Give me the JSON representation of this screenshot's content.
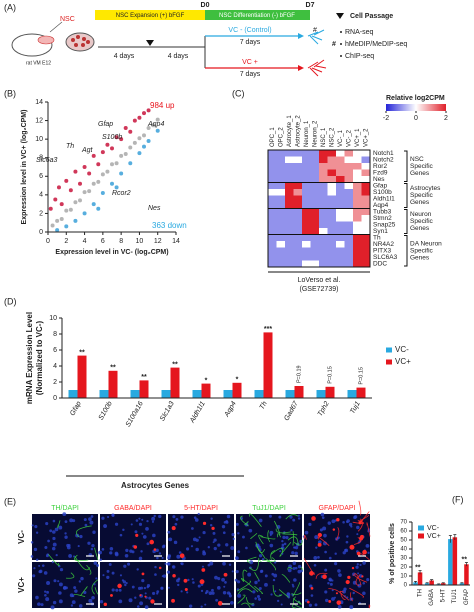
{
  "diagram": {
    "label": "(A)",
    "source_label": "NSC",
    "source": "rat VM E12",
    "expansion": "NSC Expansion (+) bFGF",
    "differentiation": "NSC Differentiation (-) bFGF",
    "d0": "D0",
    "d7": "D7",
    "steps": [
      "4 days",
      "4 days"
    ],
    "control": "VC - (Control)",
    "control_days": "7 days",
    "treated": "VC +",
    "treated_days": "7 days",
    "passage_mark": "#",
    "legend": {
      "passage": "Cell Passage",
      "assays_mark": "#",
      "assays": [
        "RNA-seq",
        "hMeDIP/MeDIP-seq",
        "ChIP-seq"
      ]
    }
  },
  "chart_data": [
    {
      "type": "scatter",
      "label": "(B)",
      "xlabel": "Expression level in VC- (log₂CPM)",
      "ylabel": "Expression level in VC+ (log₂CPM)",
      "xlim": [
        0,
        14
      ],
      "ylim": [
        0,
        14
      ],
      "xticks": [
        0,
        2,
        4,
        6,
        8,
        10,
        12,
        14
      ],
      "yticks": [
        0,
        2,
        4,
        6,
        8,
        10,
        12,
        14
      ],
      "series": [
        {
          "color": "#a8a8a8",
          "x": [
            0.5,
            1,
            1.5,
            2,
            2.5,
            3,
            3.5,
            4,
            4.5,
            5,
            5.5,
            6,
            6.5,
            7,
            7.5,
            8,
            8.5,
            9,
            9.5,
            10,
            10.5,
            11,
            11.5,
            12
          ],
          "y": [
            0.7,
            1.2,
            1.4,
            2.3,
            2.4,
            3.2,
            3.4,
            4.3,
            4.4,
            5.2,
            5.4,
            6.2,
            6.5,
            7.3,
            7.4,
            8.2,
            8.4,
            9.1,
            9.6,
            10.1,
            10.4,
            11.2,
            11.5,
            12.1
          ]
        },
        {
          "color": "#c8143c",
          "x": [
            0.3,
            0.8,
            1.2,
            1.5,
            2,
            2.5,
            3,
            3.5,
            4,
            4.5,
            5,
            5.5,
            6,
            6.5,
            7,
            7.5,
            8,
            8.5,
            9,
            9.5,
            10,
            10.5,
            11
          ],
          "y": [
            2.5,
            3.5,
            4.8,
            3,
            5.5,
            4.5,
            6.5,
            5.2,
            7,
            6.3,
            8.2,
            7.3,
            8.6,
            9.4,
            9,
            10.2,
            10,
            11.2,
            10.8,
            12,
            12.3,
            12.8,
            13.1
          ]
        },
        {
          "color": "#3aa0d8",
          "x": [
            1,
            2,
            3,
            4,
            5,
            5.5,
            6,
            7,
            7.5,
            8,
            9,
            10,
            10.5,
            11,
            12
          ],
          "y": [
            0.2,
            0.6,
            1.2,
            2,
            3,
            2.5,
            4.2,
            5.2,
            4.8,
            6.3,
            7.4,
            8.5,
            9.2,
            9.8,
            10.9
          ]
        }
      ],
      "annotations": [
        {
          "text": "984 up",
          "color": "#e8141c"
        },
        {
          "text": "Gfap",
          "color": "#222222"
        },
        {
          "text": "Aqp4",
          "color": "#222222"
        },
        {
          "text": "S100b",
          "color": "#222222"
        },
        {
          "text": "Th",
          "color": "#222222"
        },
        {
          "text": "Agt",
          "color": "#222222"
        },
        {
          "text": "Slc6a3",
          "color": "#222222"
        },
        {
          "text": "Rcor2",
          "color": "#222222"
        },
        {
          "text": "Nes",
          "color": "#222222"
        },
        {
          "text": "363 down",
          "color": "#29a9e0"
        }
      ]
    },
    {
      "type": "heatmap",
      "label": "(C)",
      "x": [
        "OPC_1",
        "OPC_2",
        "Astrocyte_1",
        "Astrocyte_2",
        "Neuron_1",
        "Neuron_2",
        "NSC_1",
        "NSC_2",
        "VC-_1",
        "VC-_2",
        "VC+_1",
        "VC+_2"
      ],
      "y": [
        "Notch1",
        "Notch2",
        "Ror2",
        "Fzd9",
        "Nes",
        "Gfap",
        "S100b",
        "Aldh1l1",
        "Aqp4",
        "Tubb3",
        "Stmn2",
        "Snap25",
        "Syn1",
        "Th",
        "NR4A2",
        "PITX3",
        "SLC6A3",
        "DDC"
      ],
      "values": [
        [
          -1,
          -1,
          -1,
          -1,
          -1,
          -1,
          2,
          2,
          0,
          1,
          0,
          0
        ],
        [
          -1,
          -1,
          0,
          0,
          -1,
          -1,
          2,
          1,
          1,
          0,
          0,
          -1
        ],
        [
          -1,
          -1,
          -1,
          -1,
          -1,
          -1,
          1,
          1,
          1,
          1,
          1,
          0
        ],
        [
          -1,
          -1,
          -1,
          -1,
          -1,
          -1,
          1,
          2,
          1,
          1,
          0,
          1
        ],
        [
          -1,
          -1,
          -1,
          -1,
          -1,
          -1,
          1,
          1,
          2,
          1,
          0,
          0
        ],
        [
          -1,
          -1,
          2,
          2,
          -1,
          -1,
          -1,
          0,
          -1,
          0,
          1,
          2
        ],
        [
          0,
          0,
          2,
          1,
          -1,
          -1,
          -1,
          0,
          -1,
          -1,
          1,
          2
        ],
        [
          -1,
          -1,
          2,
          2,
          -1,
          -1,
          -1,
          -1,
          -1,
          -1,
          1,
          1
        ],
        [
          -1,
          -1,
          2,
          2,
          -1,
          -1,
          -1,
          -1,
          -1,
          -1,
          1,
          1
        ],
        [
          -1,
          -1,
          -1,
          -1,
          2,
          2,
          -1,
          -1,
          0,
          0,
          1,
          1
        ],
        [
          -1,
          -1,
          -1,
          -1,
          2,
          2,
          -1,
          -1,
          0,
          0,
          1,
          0
        ],
        [
          -1,
          -1,
          -1,
          -1,
          2,
          2,
          -1,
          -1,
          -1,
          -1,
          0,
          0
        ],
        [
          -1,
          -1,
          -1,
          -1,
          2,
          2,
          0,
          -1,
          -1,
          -1,
          0,
          0
        ],
        [
          -1,
          -1,
          -1,
          -1,
          -1,
          -1,
          -1,
          -1,
          -1,
          -1,
          2,
          2
        ],
        [
          -1,
          0,
          -1,
          -1,
          0,
          -1,
          -1,
          -1,
          0,
          -1,
          2,
          2
        ],
        [
          -1,
          -1,
          -1,
          -1,
          -1,
          -1,
          -1,
          -1,
          -1,
          -1,
          2,
          2
        ],
        [
          -1,
          -1,
          -1,
          -1,
          -1,
          -1,
          -1,
          -1,
          -1,
          -1,
          2,
          2
        ],
        [
          -1,
          -1,
          -1,
          -1,
          0,
          0,
          -1,
          -1,
          -1,
          -1,
          2,
          2
        ]
      ],
      "colorbar": {
        "label": "Relative log2CPM",
        "lim": [
          -2,
          2
        ],
        "ticks": [
          -2,
          0,
          2
        ],
        "colors": [
          "#2424d8",
          "#ffffff",
          "#e0202a"
        ]
      },
      "groups": [
        [
          "NSC",
          "Specific",
          "Genes"
        ],
        [
          "Astrocytes",
          "Specific",
          "Genes"
        ],
        [
          "Neuron",
          "Specific",
          "Genes"
        ],
        [
          "DA Neuron",
          "Specific",
          "Genes"
        ]
      ],
      "caption": [
        "LoVerso et al.",
        "(GSE72739)"
      ]
    },
    {
      "type": "bar",
      "label": "(D)",
      "ylabel": [
        "mRNA Expression Level",
        "(Normalized to VC-)"
      ],
      "categories": [
        "Gfap",
        "S100b",
        "S100a16",
        "Slc1a3",
        "Aldh1l1",
        "Aqp4",
        "Th",
        "Gad67",
        "Tph2",
        "Tuj1"
      ],
      "series": [
        {
          "name": "VC-",
          "color": "#29a9e0",
          "values": [
            1,
            1,
            1,
            1,
            1,
            1,
            1,
            1,
            1,
            1
          ]
        },
        {
          "name": "VC+",
          "color": "#e5161e",
          "values": [
            5.3,
            3.4,
            2.2,
            3.8,
            1.8,
            1.9,
            8.2,
            1.5,
            1.4,
            1.3
          ]
        }
      ],
      "annotations": [
        "**",
        "**",
        "**",
        "**",
        "*",
        "*",
        "***",
        "P=0.19",
        "P=0.15",
        "P=0.15"
      ],
      "group_label": "Astrocytes Genes",
      "ylim": [
        0,
        10
      ],
      "yticks": [
        0,
        2,
        4,
        6,
        8,
        10
      ],
      "legend": "right"
    },
    {
      "type": "bar",
      "label": "(F)",
      "ylabel": [
        "% of positive cells"
      ],
      "categories": [
        "TH",
        "GABA",
        "5-HT",
        "TUJ1",
        "GFAP"
      ],
      "series": [
        {
          "name": "VC-",
          "color": "#29a9e0",
          "values": [
            3,
            2,
            1,
            51,
            2
          ],
          "errors": [
            1,
            0.5,
            0.3,
            4,
            0.5
          ]
        },
        {
          "name": "VC+",
          "color": "#e5161e",
          "values": [
            14,
            5,
            2,
            53,
            23
          ],
          "errors": [
            2,
            1,
            0.5,
            3,
            2
          ]
        }
      ],
      "annotations": [
        "**",
        null,
        null,
        null,
        "**"
      ],
      "ylim": [
        0,
        70
      ],
      "yticks": [
        0,
        10,
        20,
        30,
        40,
        50,
        60,
        70
      ],
      "legend": "upper left"
    }
  ],
  "images": {
    "label": "(E)",
    "rows": [
      "VC-",
      "VC+"
    ],
    "columns": [
      {
        "label": "TH/DAPI",
        "color": "#3dd13d"
      },
      {
        "label": "GABA/DAPI",
        "color": "#ff2a2a"
      },
      {
        "label": "5-HT/DAPI",
        "color": "#ff2a2a"
      },
      {
        "label": "TuJ1/DAPI",
        "color": "#3dd13d"
      },
      {
        "label": "GFAP/DAPI",
        "color": "#ff2a2a"
      }
    ]
  }
}
